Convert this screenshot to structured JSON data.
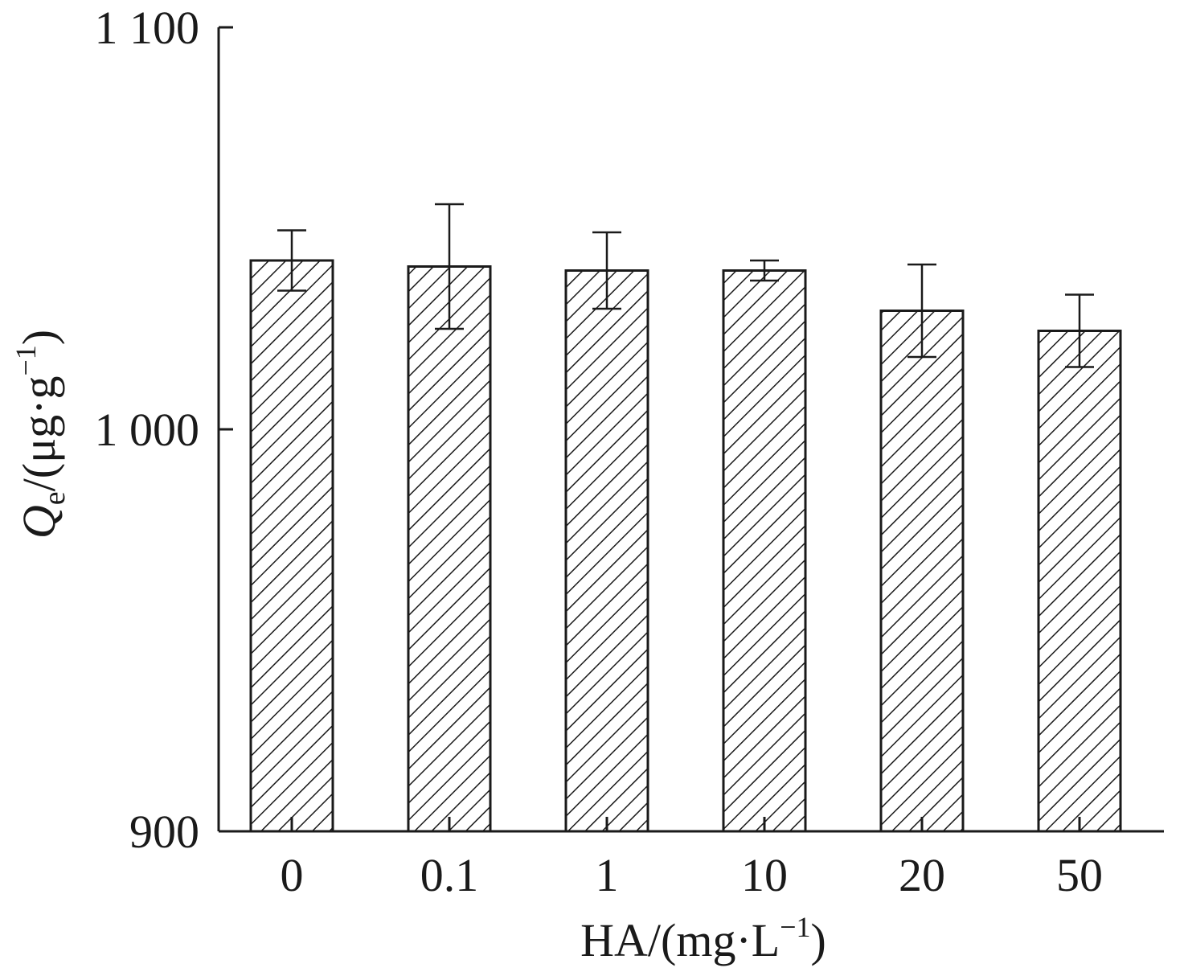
{
  "chart_data": {
    "type": "bar",
    "categories": [
      "0",
      "0.1",
      "1",
      "10",
      "20",
      "50"
    ],
    "values": [
      1042,
      1040.5,
      1039.5,
      1039.5,
      1029.5,
      1024.5
    ],
    "error": [
      7.5,
      15.5,
      9.5,
      2.5,
      11.5,
      9
    ],
    "ylim": [
      900,
      1100
    ],
    "yticks": [
      900,
      1000,
      1100
    ],
    "ytick_labels": [
      "900",
      "1 000",
      "1 100"
    ],
    "xlabel": {
      "main": "HA/(mg·L",
      "sup": "−1",
      "close": ")"
    },
    "ylabel": {
      "symbol": "Q",
      "sub": "e",
      "main": "/(μg·g",
      "sup": "−1",
      "close": ")"
    },
    "pattern": "diagonal-hatch",
    "colors": {
      "ink": "#1a1a1a",
      "background": "#ffffff"
    }
  }
}
